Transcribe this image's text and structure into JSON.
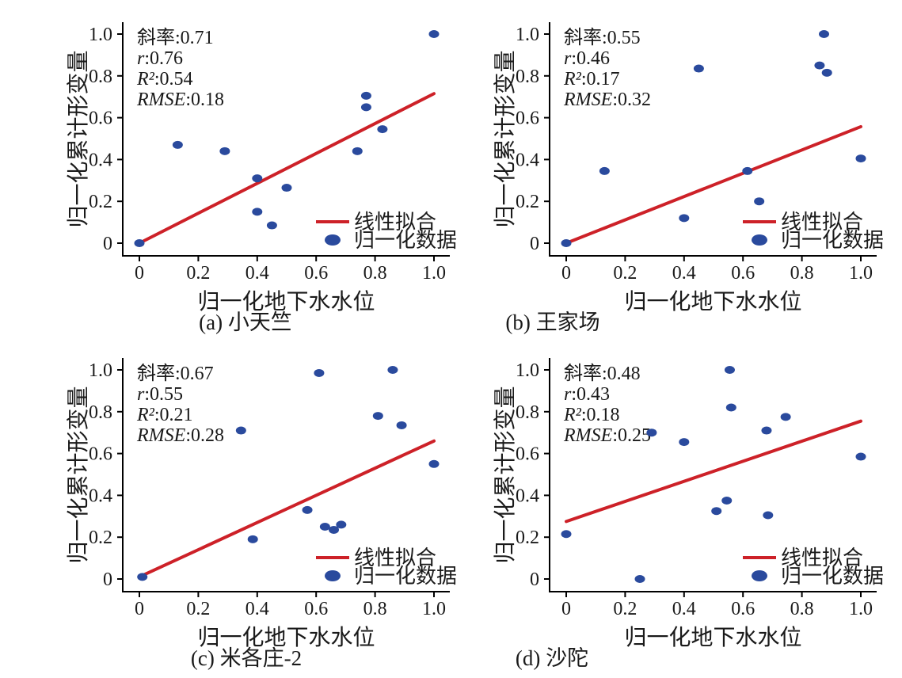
{
  "figure": {
    "colors": {
      "fit_line": "#cd2128",
      "data_point": "#2a4a9d",
      "axis": "#000000",
      "text": "#1a1a1a"
    },
    "legend": {
      "line_label": "线性拟合",
      "point_label": "归一化数据"
    },
    "axis": {
      "x_label": "归一化地下水水位",
      "y_label": "归一化累计形变量",
      "ticks": [
        0,
        0.2,
        0.4,
        0.6,
        0.8,
        1.0
      ],
      "tick_labels": [
        "0",
        "0.2",
        "0.4",
        "0.6",
        "0.8",
        "1.0"
      ],
      "xlim": [
        0,
        1.0
      ],
      "ylim": [
        0,
        1.0
      ]
    }
  },
  "chart_data": [
    {
      "id": "a",
      "type": "scatter",
      "caption": "(a) 小天竺",
      "xlabel": "归一化地下水水位",
      "ylabel": "归一化累计形变量",
      "stats": {
        "slope": 0.71,
        "r": 0.76,
        "r2": 0.54,
        "rmse": 0.18
      },
      "stats_lines": [
        {
          "label": "斜率",
          "value": "0.71",
          "italic": false
        },
        {
          "label": "r",
          "value": "0.76",
          "italic": true
        },
        {
          "label": "R²",
          "value": "0.54",
          "italic": true
        },
        {
          "label": "RMSE",
          "value": "0.18",
          "italic": true
        }
      ],
      "points": [
        [
          0,
          0
        ],
        [
          0.13,
          0.47
        ],
        [
          0.29,
          0.44
        ],
        [
          0.4,
          0.31
        ],
        [
          0.4,
          0.15
        ],
        [
          0.45,
          0.085
        ],
        [
          0.5,
          0.265
        ],
        [
          0.74,
          0.44
        ],
        [
          0.77,
          0.705
        ],
        [
          0.77,
          0.65
        ],
        [
          0.825,
          0.545
        ],
        [
          1.0,
          1.0
        ]
      ],
      "fit_line": {
        "x1": 0,
        "y1": 0.0,
        "x2": 1.0,
        "y2": 0.715
      }
    },
    {
      "id": "b",
      "type": "scatter",
      "caption": "(b) 王家场",
      "xlabel": "归一化地下水水位",
      "ylabel": "归一化累计形变量",
      "stats": {
        "slope": 0.55,
        "r": 0.46,
        "r2": 0.17,
        "rmse": 0.32
      },
      "stats_lines": [
        {
          "label": "斜率",
          "value": "0.55",
          "italic": false
        },
        {
          "label": "r",
          "value": "0.46",
          "italic": true
        },
        {
          "label": "R²",
          "value": "0.17",
          "italic": true
        },
        {
          "label": "RMSE",
          "value": "0.32",
          "italic": true
        }
      ],
      "points": [
        [
          0,
          0
        ],
        [
          0.13,
          0.345
        ],
        [
          0.4,
          0.12
        ],
        [
          0.45,
          0.835
        ],
        [
          0.615,
          0.345
        ],
        [
          0.655,
          0.2
        ],
        [
          0.86,
          0.85
        ],
        [
          0.875,
          1.0
        ],
        [
          0.885,
          0.815
        ],
        [
          1.0,
          0.405
        ]
      ],
      "fit_line": {
        "x1": 0,
        "y1": 0.0,
        "x2": 1.0,
        "y2": 0.557
      }
    },
    {
      "id": "c",
      "type": "scatter",
      "caption": "(c) 米各庄-2",
      "xlabel": "归一化地下水水位",
      "ylabel": "归一化累计形变量",
      "stats": {
        "slope": 0.67,
        "r": 0.55,
        "r2": 0.21,
        "rmse": 0.28
      },
      "stats_lines": [
        {
          "label": "斜率",
          "value": "0.67",
          "italic": false
        },
        {
          "label": "r",
          "value": "0.55",
          "italic": true
        },
        {
          "label": "R²",
          "value": "0.21",
          "italic": true
        },
        {
          "label": "RMSE",
          "value": "0.28",
          "italic": true
        }
      ],
      "points": [
        [
          0.01,
          0.01
        ],
        [
          0.345,
          0.71
        ],
        [
          0.385,
          0.19
        ],
        [
          0.57,
          0.33
        ],
        [
          0.61,
          0.985
        ],
        [
          0.63,
          0.25
        ],
        [
          0.66,
          0.235
        ],
        [
          0.685,
          0.26
        ],
        [
          0.81,
          0.78
        ],
        [
          0.86,
          1.0
        ],
        [
          0.89,
          0.735
        ],
        [
          1.0,
          0.55
        ]
      ],
      "fit_line": {
        "x1": 0,
        "y1": 0.01,
        "x2": 1.0,
        "y2": 0.66
      }
    },
    {
      "id": "d",
      "type": "scatter",
      "caption": "(d) 沙陀",
      "xlabel": "归一化地下水水位",
      "ylabel": "归一化累计形变量",
      "stats": {
        "slope": 0.48,
        "r": 0.43,
        "r2": 0.18,
        "rmse": 0.25
      },
      "stats_lines": [
        {
          "label": "斜率",
          "value": "0.48",
          "italic": false
        },
        {
          "label": "r",
          "value": "0.43",
          "italic": true
        },
        {
          "label": "R²",
          "value": "0.18",
          "italic": true
        },
        {
          "label": "RMSE",
          "value": "0.25",
          "italic": true
        }
      ],
      "points": [
        [
          0,
          0.215
        ],
        [
          0.25,
          0.0
        ],
        [
          0.29,
          0.7
        ],
        [
          0.4,
          0.655
        ],
        [
          0.51,
          0.325
        ],
        [
          0.545,
          0.375
        ],
        [
          0.555,
          1.0
        ],
        [
          0.56,
          0.82
        ],
        [
          0.68,
          0.71
        ],
        [
          0.685,
          0.305
        ],
        [
          0.745,
          0.775
        ],
        [
          1.0,
          0.585
        ]
      ],
      "fit_line": {
        "x1": 0,
        "y1": 0.275,
        "x2": 1.0,
        "y2": 0.755
      }
    }
  ]
}
